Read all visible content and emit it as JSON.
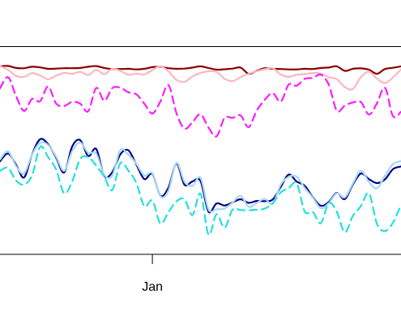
{
  "chart_data": {
    "type": "line",
    "title": "",
    "xlabel": "",
    "ylabel": "",
    "grid": false,
    "legend": "none",
    "x_ticks": [
      {
        "label": "Jan",
        "x": 38
      }
    ],
    "xlim": [
      0,
      100
    ],
    "ylim": [
      0,
      100
    ],
    "x": [
      0,
      2,
      4,
      6,
      8,
      10,
      12,
      14,
      16,
      18,
      20,
      22,
      24,
      26,
      28,
      30,
      32,
      34,
      36,
      38,
      40,
      42,
      44,
      46,
      48,
      50,
      52,
      54,
      56,
      58,
      60,
      62,
      64,
      66,
      68,
      70,
      72,
      74,
      76,
      78,
      80,
      82,
      84,
      86,
      88,
      90,
      92,
      94,
      96,
      98,
      100
    ],
    "series": [
      {
        "color": "#8b0000",
        "dash": "solid",
        "values": [
          90.5,
          90.7,
          89.7,
          89.6,
          90.3,
          90.0,
          89.3,
          89.4,
          89.6,
          89.6,
          89.7,
          90.3,
          90.6,
          89.7,
          89.2,
          89.2,
          89.3,
          89.0,
          89.3,
          90.1,
          90.3,
          89.6,
          89.3,
          89.4,
          89.9,
          90.5,
          89.7,
          88.9,
          89.1,
          89.4,
          89.9,
          86.9,
          88.3,
          89.6,
          89.3,
          89.2,
          89.0,
          89.0,
          89.3,
          89.2,
          89.7,
          89.9,
          90.5,
          88.3,
          89.3,
          89.5,
          88.9,
          86.9,
          89.2,
          89.8,
          90.5
        ]
      },
      {
        "color": "#ffb6c1",
        "dash": "solid",
        "values": [
          90.6,
          88.8,
          85.9,
          85.4,
          87.2,
          86.1,
          84.3,
          86.0,
          87.3,
          86.9,
          87.8,
          86.3,
          88.8,
          86.7,
          89.3,
          88.3,
          86.5,
          87.0,
          86.6,
          88.7,
          90.5,
          88.1,
          84.0,
          83.0,
          85.6,
          87.3,
          88.1,
          87.8,
          84.5,
          83.4,
          85.3,
          86.9,
          88.1,
          89.1,
          89.6,
          86.6,
          85.4,
          86.4,
          86.7,
          87.3,
          87.0,
          85.2,
          84.3,
          80.5,
          79.6,
          85.3,
          87.9,
          84.6,
          82.4,
          85.2,
          89.0
        ]
      },
      {
        "color": "#ff1aff",
        "dash": "dashed",
        "values": [
          79.9,
          85.3,
          76.2,
          69.0,
          74.8,
          73.7,
          80.8,
          72.6,
          71.4,
          73.4,
          72.5,
          68.9,
          80.1,
          73.9,
          80.0,
          80.2,
          78.0,
          77.0,
          72.5,
          67.8,
          73.6,
          81.5,
          68.0,
          60.5,
          63.6,
          67.4,
          61.0,
          56.8,
          65.6,
          65.7,
          66.9,
          61.2,
          69.1,
          74.3,
          77.6,
          73.5,
          81.7,
          81.2,
          84.5,
          84.9,
          86.5,
          81.6,
          69.1,
          71.6,
          73.1,
          73.3,
          67.3,
          72.7,
          80.2,
          66.5,
          68.6
        ]
      },
      {
        "color": "#00008b",
        "dash": "solid",
        "values": [
          44.8,
          48.5,
          43.1,
          37.0,
          48.1,
          55.4,
          53.0,
          46.5,
          39.4,
          51.9,
          55.0,
          47.3,
          50.7,
          37.8,
          39.5,
          48.1,
          50.1,
          43.2,
          36.2,
          38.7,
          28.2,
          32.1,
          43.6,
          33.5,
          35.1,
          35.3,
          20.5,
          24.5,
          23.5,
          25.0,
          26.5,
          24.8,
          25.7,
          25.6,
          26.4,
          32.4,
          38.4,
          35.0,
          33.0,
          27.5,
          23.4,
          25.2,
          29.6,
          26.6,
          33.6,
          38.9,
          36.2,
          34.3,
          36.1,
          41.0,
          42.3
        ]
      },
      {
        "color": "#a8d8f0",
        "dash": "solid",
        "values": [
          45.6,
          49.6,
          42.5,
          38.9,
          48.0,
          53.7,
          52.6,
          47.0,
          40.2,
          49.7,
          53.8,
          48.8,
          48.5,
          38.3,
          37.9,
          50.2,
          48.0,
          43.6,
          37.9,
          39.0,
          27.9,
          30.6,
          44.0,
          34.9,
          33.0,
          36.9,
          21.6,
          21.7,
          22.1,
          24.9,
          28.2,
          22.9,
          24.7,
          26.7,
          24.3,
          33.5,
          37.3,
          37.4,
          31.9,
          27.3,
          22.2,
          24.7,
          29.4,
          27.4,
          34.1,
          40.2,
          34.8,
          31.8,
          37.9,
          43.4,
          44.9
        ]
      },
      {
        "color": "#22e0e0",
        "dash": "dashed",
        "values": [
          40.2,
          41.6,
          35.5,
          33.6,
          38.0,
          51.7,
          46.8,
          40.8,
          29.4,
          35.1,
          45.9,
          46.8,
          42.7,
          37.3,
          30.9,
          43.9,
          40.3,
          34.4,
          23.1,
          25.9,
          14.9,
          20.3,
          25.5,
          26.5,
          18.9,
          29.2,
          9.5,
          19.3,
          12.8,
          21.5,
          21.3,
          21.2,
          21.5,
          22.0,
          24.6,
          29.8,
          32.0,
          34.1,
          20.6,
          20.4,
          15.0,
          24.8,
          20.4,
          10.6,
          18.5,
          23.2,
          29.4,
          14.7,
          11.2,
          15.3,
          23.9
        ]
      }
    ]
  }
}
